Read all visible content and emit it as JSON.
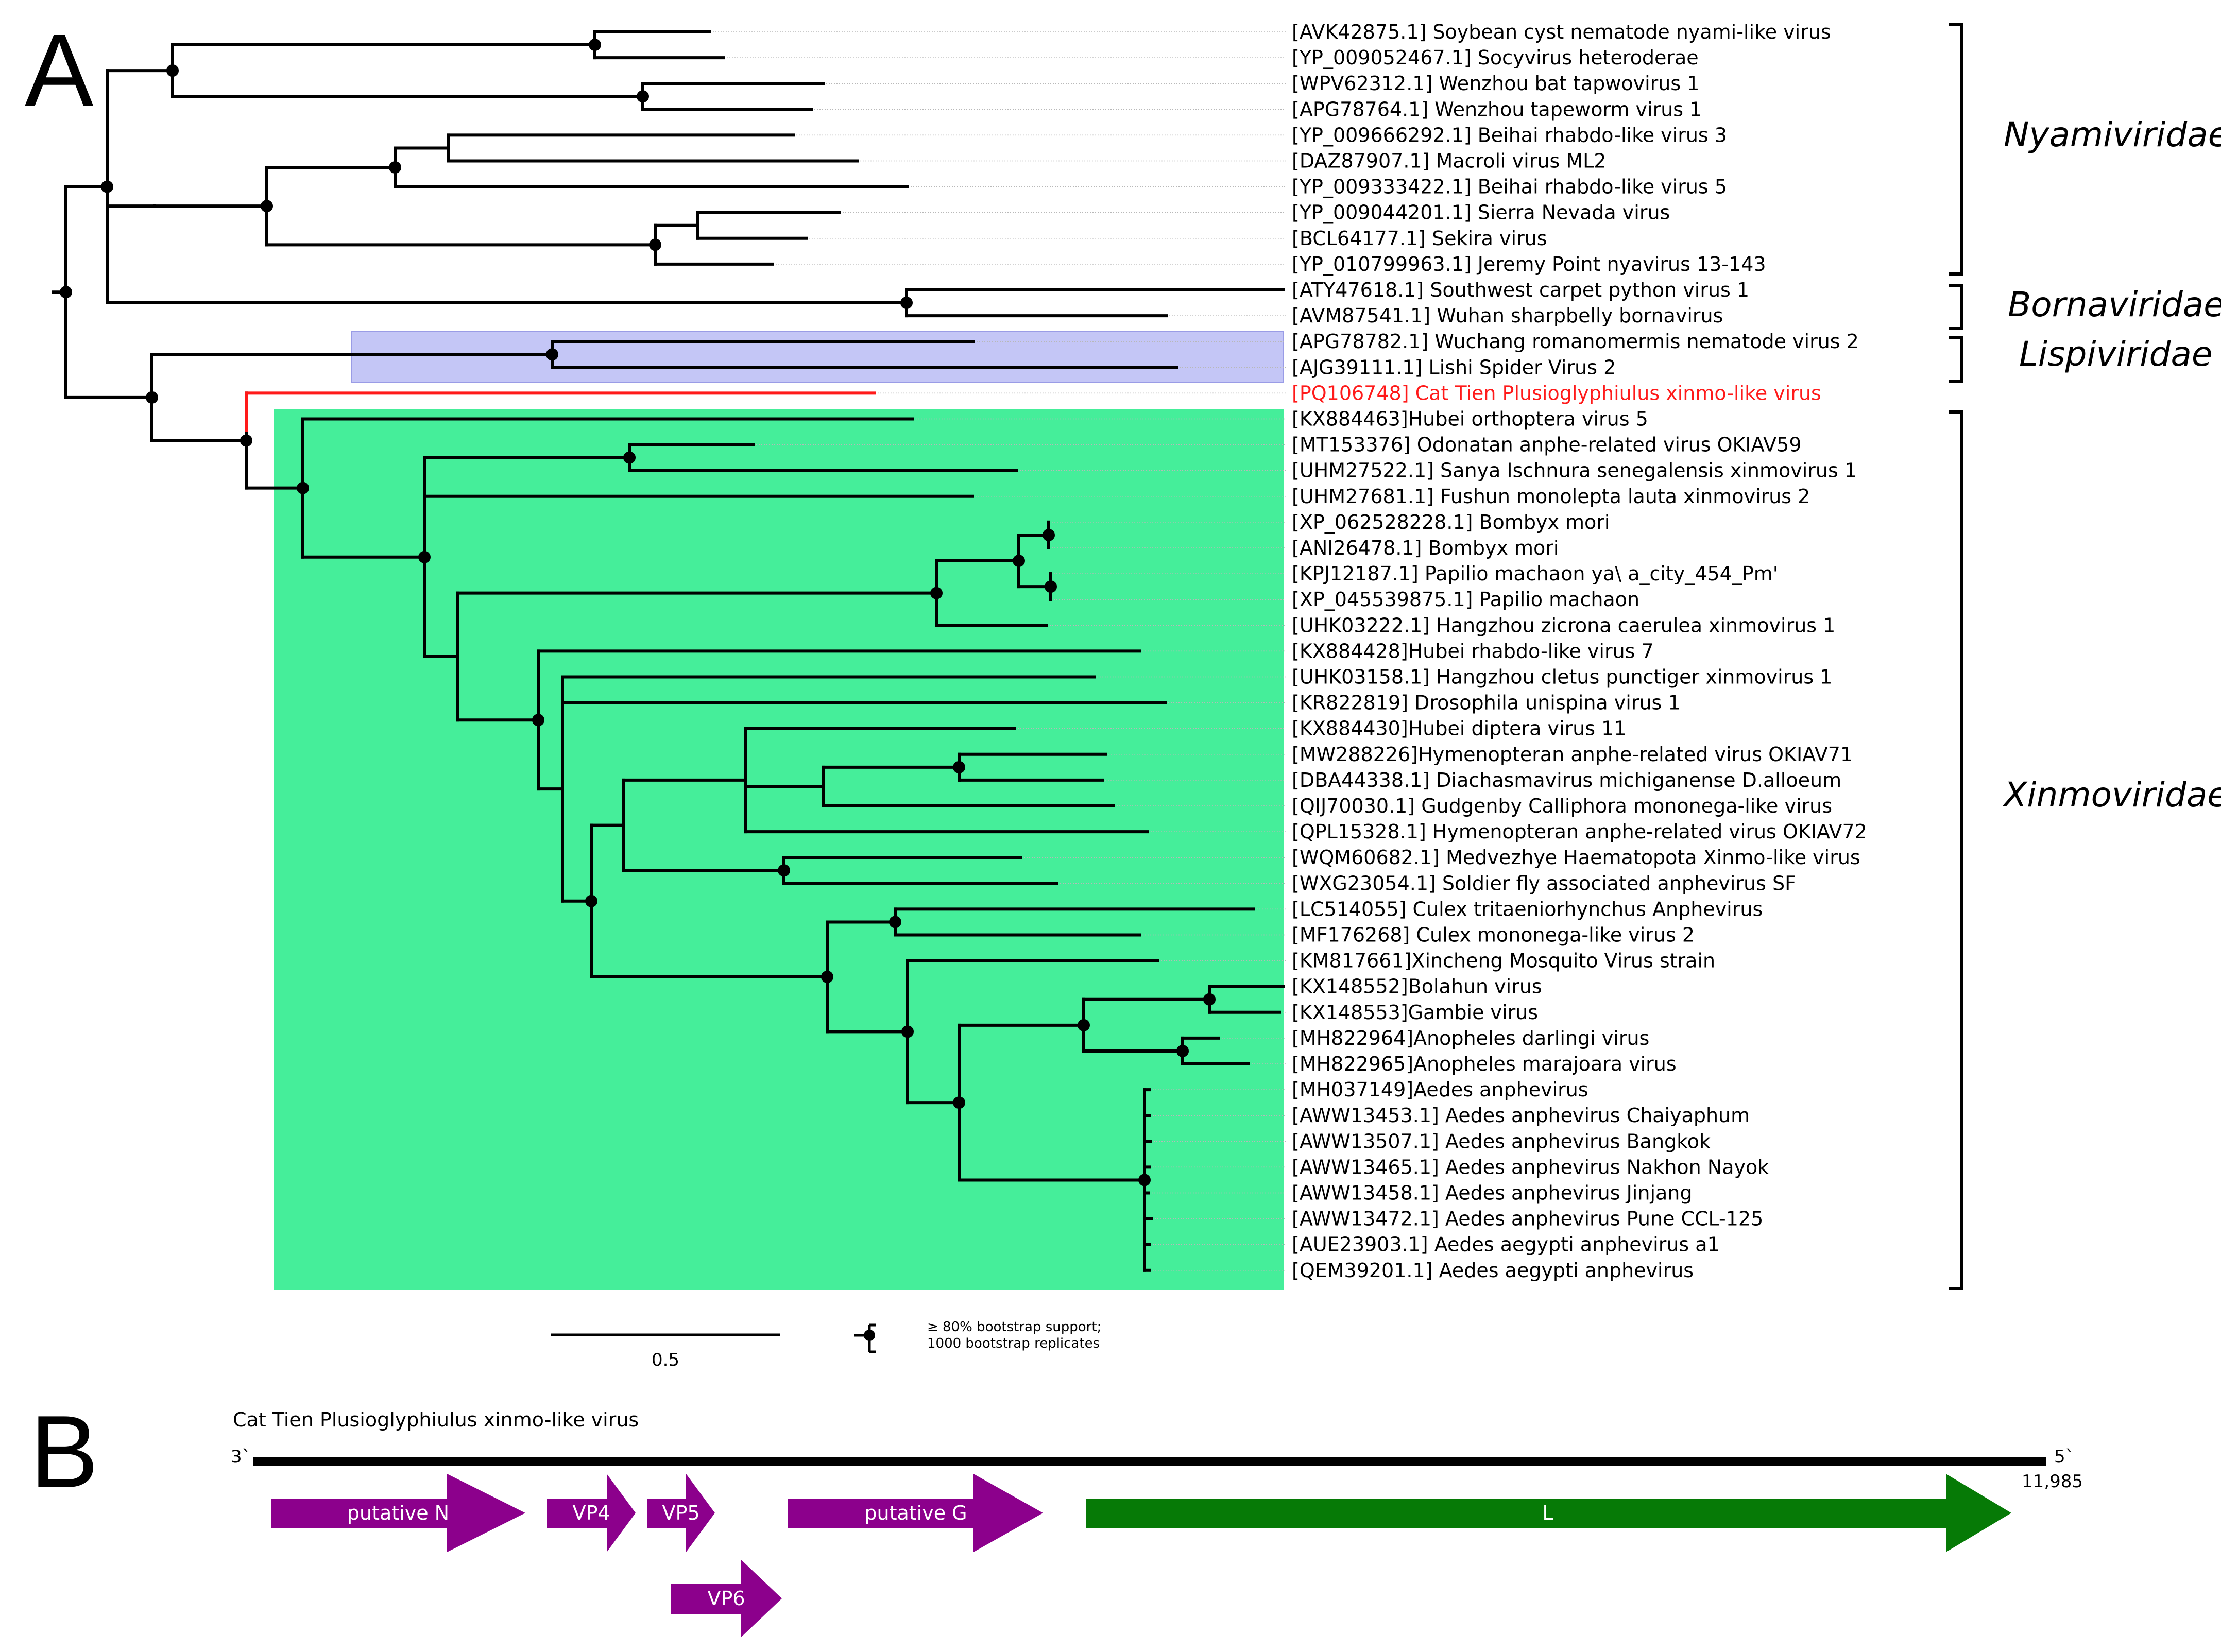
{
  "panel_a": {
    "letter": "A",
    "leaves": [
      "[AVK42875.1] Soybean cyst nematode nyami-like virus",
      "[YP_009052467.1] Socyvirus heteroderae",
      "[WPV62312.1] Wenzhou bat tapwovirus 1",
      "[APG78764.1] Wenzhou tapeworm virus 1",
      "[YP_009666292.1] Beihai rhabdo-like virus 3",
      "[DAZ87907.1] Macroli virus ML2",
      "[YP_009333422.1] Beihai rhabdo-like virus 5",
      "[YP_009044201.1] Sierra Nevada virus",
      "[BCL64177.1] Sekira virus",
      "[YP_010799963.1] Jeremy Point nyavirus 13-143",
      "[ATY47618.1] Southwest carpet python virus 1",
      "[AVM87541.1] Wuhan sharpbelly bornavirus",
      "[APG78782.1] Wuchang romanomermis nematode virus 2",
      "[AJG39111.1] Lishi Spider Virus 2",
      "[PQ106748] Cat Tien Plusioglyphiulus xinmo-like virus",
      "[KX884463]Hubei orthoptera virus 5",
      "[MT153376] Odonatan anphe-related virus OKIAV59",
      "[UHM27522.1] Sanya Ischnura senegalensis xinmovirus 1",
      "[UHM27681.1] Fushun monolepta lauta xinmovirus 2",
      "[XP_062528228.1] Bombyx mori",
      "[ANI26478.1] Bombyx mori",
      "[KPJ12187.1] Papilio machaon ya\\ a_city_454_Pm'",
      "[XP_045539875.1] Papilio machaon",
      "[UHK03222.1] Hangzhou zicrona caerulea xinmovirus 1",
      "[KX884428]Hubei rhabdo-like virus 7",
      "[UHK03158.1] Hangzhou cletus punctiger xinmovirus 1",
      "[KR822819] Drosophila unispina virus 1",
      "[KX884430]Hubei diptera virus 11",
      "[MW288226]Hymenopteran anphe-related virus OKIAV71",
      "[DBA44338.1] Diachasmavirus michiganense D.alloeum",
      "[QIJ70030.1] Gudgenby Calliphora mononega-like virus",
      "[QPL15328.1] Hymenopteran anphe-related virus OKIAV72",
      "[WQM60682.1] Medvezhye Haematopota Xinmo-like virus",
      "[WXG23054.1] Soldier fly associated anphevirus SF",
      "[LC514055] Culex tritaeniorhynchus Anphevirus",
      "[MF176268] Culex mononega-like virus 2",
      "[KM817661]Xincheng Mosquito Virus strain",
      "[KX148552]Bolahun virus",
      "[KX148553]Gambie virus",
      "[MH822964]Anopheles darlingi virus",
      "[MH822965]Anopheles marajoara virus",
      "[MH037149]Aedes anphevirus",
      "[AWW13453.1] Aedes anphevirus Chaiyaphum",
      "[AWW13507.1] Aedes anphevirus Bangkok",
      "[AWW13465.1] Aedes anphevirus Nakhon Nayok",
      "[AWW13458.1] Aedes anphevirus Jinjang",
      "[AWW13472.1] Aedes anphevirus Pune CCL-125",
      "[AUE23903.1] Aedes aegypti anphevirus a1",
      "[QEM39201.1] Aedes aegypti anphevirus"
    ],
    "families": [
      "Nyamiviridae",
      "Bornaviridae",
      "Lispiviridae",
      "Xinmoviridae"
    ],
    "scale_bar_label": "0.5",
    "legend_line1": "≥ 80% bootstrap support;",
    "legend_line2": "1000 bootstrap replicates"
  },
  "panel_b": {
    "letter": "B",
    "title": "Cat Tien Plusioglyphiulus xinmo-like virus",
    "left_end": "3`",
    "right_end": "5`",
    "length_label": "11,985",
    "genes": [
      "putative N",
      "VP4",
      "VP5",
      "putative G",
      "L",
      "VP6"
    ]
  },
  "colors": {
    "highlight_red": "#ff1a1a",
    "xinmo_box": "#45ee9a",
    "lispi_box": "#c4c6f6",
    "gene_purple": "#8c008c",
    "gene_green": "#067a06"
  }
}
